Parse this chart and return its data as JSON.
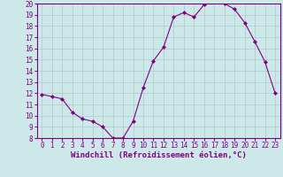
{
  "x": [
    0,
    1,
    2,
    3,
    4,
    5,
    6,
    7,
    8,
    9,
    10,
    11,
    12,
    13,
    14,
    15,
    16,
    17,
    18,
    19,
    20,
    21,
    22,
    23
  ],
  "y": [
    11.9,
    11.7,
    11.5,
    10.3,
    9.7,
    9.5,
    9.0,
    8.0,
    8.0,
    9.5,
    12.5,
    14.9,
    16.1,
    18.8,
    19.2,
    18.8,
    19.9,
    20.2,
    20.0,
    19.5,
    18.3,
    16.6,
    14.8,
    12.0
  ],
  "xlabel": "Windchill (Refroidissement éolien,°C)",
  "ylim": [
    8,
    20
  ],
  "xlim": [
    -0.5,
    23.5
  ],
  "yticks": [
    8,
    9,
    10,
    11,
    12,
    13,
    14,
    15,
    16,
    17,
    18,
    19,
    20
  ],
  "xticks": [
    0,
    1,
    2,
    3,
    4,
    5,
    6,
    7,
    8,
    9,
    10,
    11,
    12,
    13,
    14,
    15,
    16,
    17,
    18,
    19,
    20,
    21,
    22,
    23
  ],
  "line_color": "#800080",
  "marker_color": "#800080",
  "bg_color": "#cce8e8",
  "grid_color": "#b0c8c8",
  "font_color": "#800080",
  "tick_fontsize": 5.5,
  "xlabel_fontsize": 6.5
}
